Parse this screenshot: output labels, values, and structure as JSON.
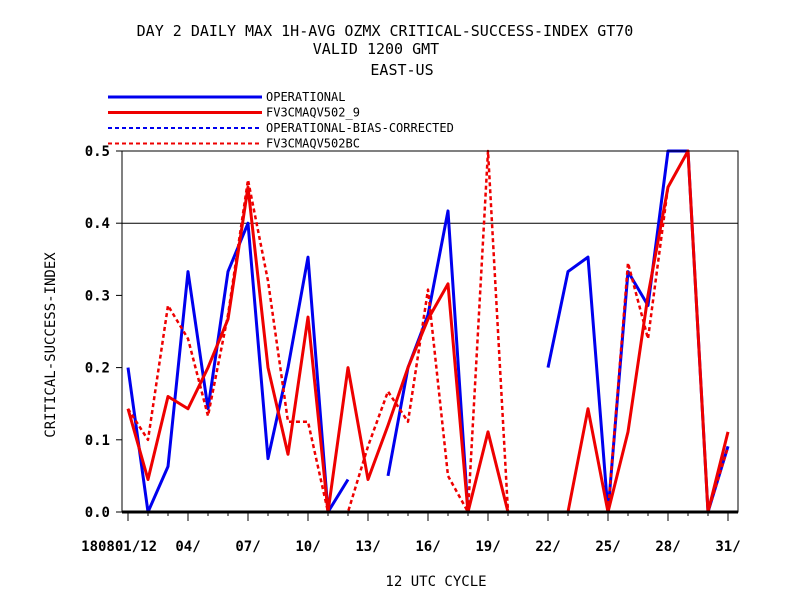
{
  "chart_data": {
    "type": "line",
    "title_lines": [
      "DAY 2 DAILY MAX   1H-AVG OZMX CRITICAL-SUCCESS-INDEX GT70",
      "VALID 1200 GMT",
      "EAST-US"
    ],
    "xlabel": "12 UTC CYCLE",
    "ylabel": "CRITICAL-SUCCESS-INDEX",
    "xlim": [
      0.7,
      31.5
    ],
    "ylim": [
      0,
      0.5
    ],
    "yticks": [
      0.0,
      0.1,
      0.2,
      0.3,
      0.4,
      0.5
    ],
    "ytick_labels": [
      "0.0",
      "0.1",
      "0.2",
      "0.3",
      "0.4",
      "0.5"
    ],
    "xticks": [
      1,
      4,
      7,
      10,
      13,
      16,
      19,
      22,
      25,
      28,
      31
    ],
    "xtick_labels": [
      "180801/12",
      "04/",
      "07/",
      "10/",
      "13/",
      "16/",
      "19/",
      "22/",
      "25/",
      "28/",
      "31/"
    ],
    "grid_y": [
      0.4
    ],
    "legend_position": "top-left",
    "x": [
      1,
      2,
      3,
      4,
      5,
      6,
      7,
      8,
      9,
      10,
      11,
      12,
      13,
      14,
      15,
      16,
      17,
      18,
      19,
      20,
      21,
      22,
      23,
      24,
      25,
      26,
      27,
      28,
      29,
      30,
      31
    ],
    "series": [
      {
        "name": "OPERATIONAL",
        "color": "#0000ee",
        "dash": "solid",
        "values": [
          0.2,
          0.0,
          0.063,
          0.333,
          0.143,
          0.333,
          0.4,
          0.074,
          0.2,
          0.353,
          0.0,
          0.045,
          null,
          0.05,
          0.2,
          0.273,
          0.417,
          0.0,
          null,
          null,
          null,
          0.2,
          0.333,
          0.353,
          0.0,
          0.333,
          0.286,
          0.5,
          0.5,
          0.0,
          0.091
        ]
      },
      {
        "name": "FV3CMAQV502_9",
        "color": "#ee0000",
        "dash": "solid",
        "values": [
          0.143,
          0.045,
          0.16,
          0.143,
          0.2,
          0.267,
          0.45,
          0.2,
          0.08,
          0.27,
          0.0,
          0.2,
          0.045,
          0.12,
          0.2,
          0.267,
          0.316,
          0.0,
          0.111,
          0.0,
          null,
          null,
          0.0,
          0.143,
          0.0,
          0.111,
          0.3,
          0.45,
          0.5,
          0.0,
          0.111
        ]
      },
      {
        "name": "OPERATIONAL-BIAS-CORRECTED",
        "color": "#0000ee",
        "dash": "dashed",
        "values": [
          null,
          null,
          null,
          null,
          null,
          null,
          null,
          null,
          null,
          null,
          null,
          null,
          null,
          null,
          null,
          null,
          null,
          null,
          null,
          null,
          null,
          null,
          null,
          null,
          null,
          null,
          null,
          null,
          null,
          null,
          null
        ]
      },
      {
        "name": "FV3CMAQV502BC",
        "color": "#ee0000",
        "dash": "dashed",
        "values": [
          0.143,
          0.1,
          0.286,
          0.24,
          0.133,
          0.273,
          0.46,
          0.32,
          0.125,
          0.125,
          0.0,
          0.0,
          0.091,
          0.167,
          0.125,
          0.308,
          0.05,
          0.0,
          0.5,
          0.0,
          null,
          null,
          null,
          null,
          0.0,
          0.345,
          0.24,
          0.45,
          0.5,
          0.0,
          0.09
        ]
      }
    ]
  }
}
